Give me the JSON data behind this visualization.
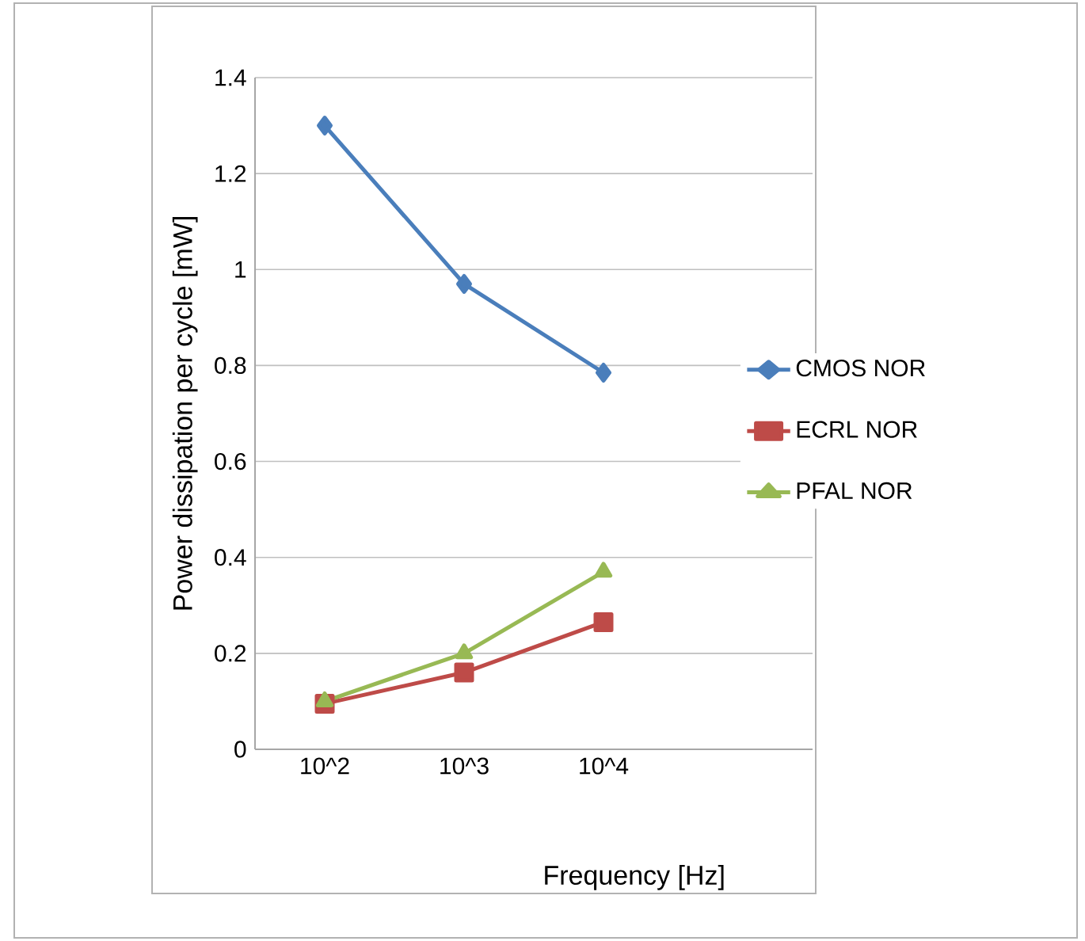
{
  "chart_data": {
    "type": "line",
    "xlabel": "Frequency [Hz]",
    "ylabel": "Power dissipation per cycle [mW]",
    "categories": [
      "10^2",
      "10^3",
      "10^4",
      null
    ],
    "series": [
      {
        "name": "CMOS NOR",
        "color": "#4a7ebb",
        "marker": "diamond",
        "values": [
          1.3,
          0.97,
          0.785,
          null
        ]
      },
      {
        "name": "ECRL NOR",
        "color": "#be4b48",
        "marker": "square",
        "values": [
          0.095,
          0.16,
          0.265,
          null
        ]
      },
      {
        "name": "PFAL NOR",
        "color": "#98b954",
        "marker": "triangle",
        "values": [
          0.1,
          0.2,
          0.37,
          null
        ]
      }
    ],
    "ylim": [
      0,
      1.4
    ],
    "yticks": [
      0,
      0.2,
      0.4,
      0.6,
      0.8,
      1,
      1.2,
      1.4
    ],
    "grid": "y",
    "legend": "right",
    "line_style": "solid"
  }
}
